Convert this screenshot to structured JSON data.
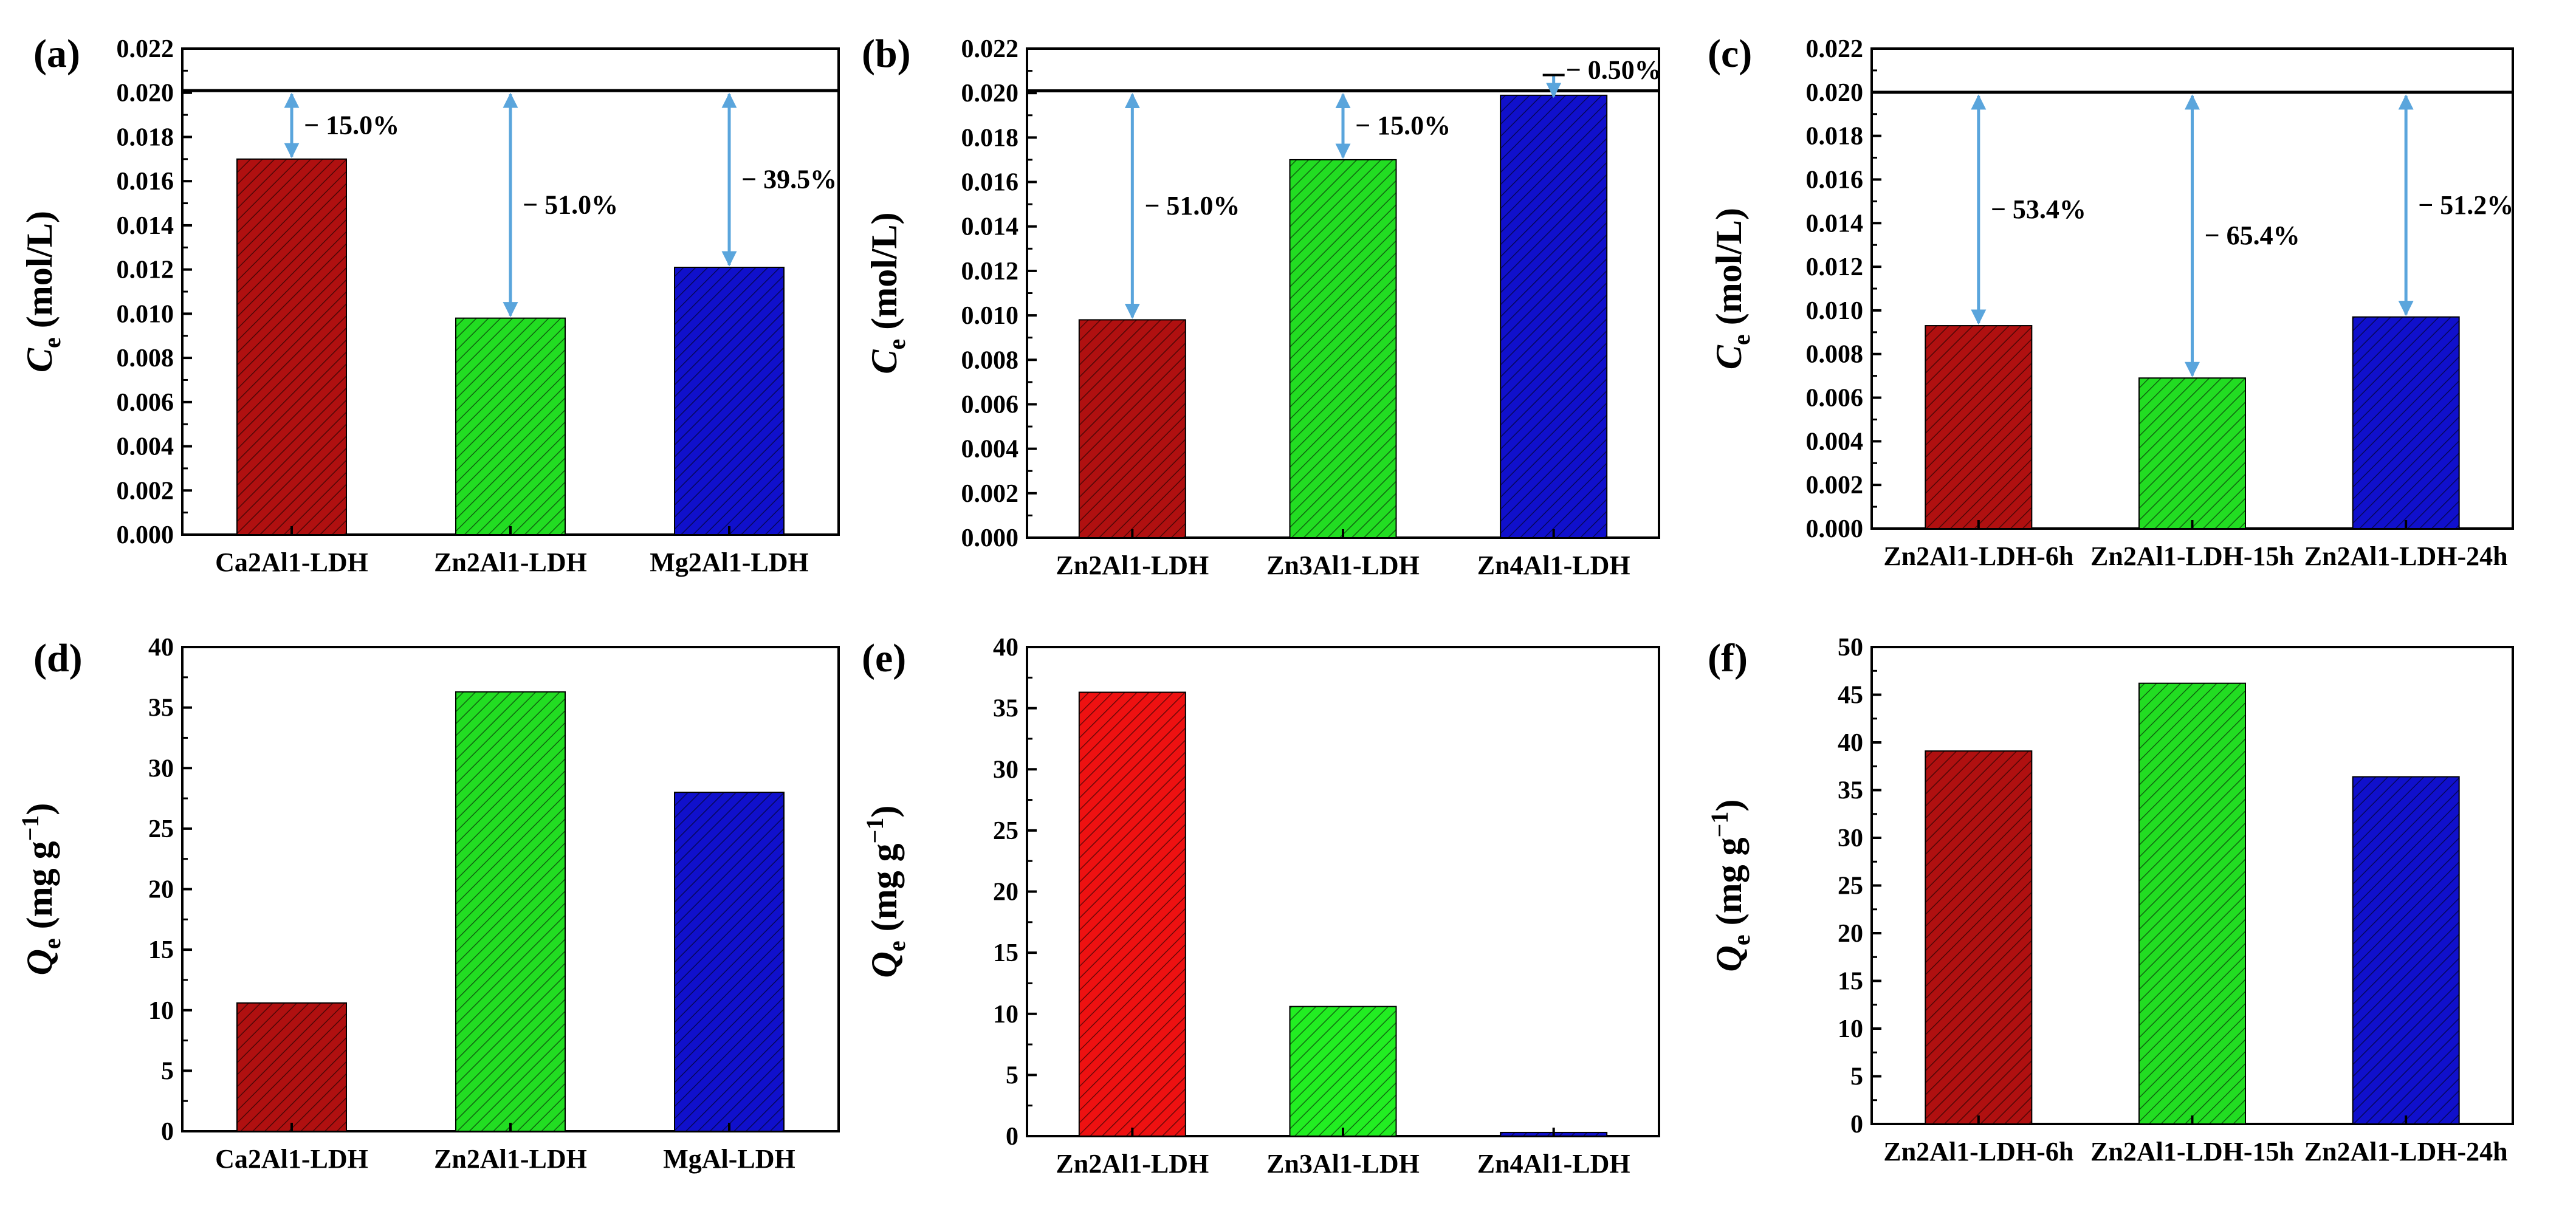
{
  "chart_data": [
    {
      "panel": "(a)",
      "type": "bar",
      "categories": [
        "Ca2Al1-LDH",
        "Zn2Al1-LDH",
        "Mg2Al1-LDH"
      ],
      "values": [
        0.017,
        0.0098,
        0.0121
      ],
      "colors": [
        "#b01010",
        "#22dd22",
        "#1010cc"
      ],
      "ylabel": {
        "italic": "C",
        "sub": "e",
        "rest": " (mol/L)"
      },
      "ylim": [
        0,
        0.022
      ],
      "yticks": [
        "0.000",
        "0.002",
        "0.004",
        "0.006",
        "0.008",
        "0.010",
        "0.012",
        "0.014",
        "0.016",
        "0.018",
        "0.020",
        "0.022"
      ],
      "reference_line": 0.0201,
      "annotations": [
        "− 15.0%",
        "− 51.0%",
        "− 39.5%"
      ]
    },
    {
      "panel": "(b)",
      "type": "bar",
      "categories": [
        "Zn2Al1-LDH",
        "Zn3Al1-LDH",
        "Zn4Al1-LDH"
      ],
      "values": [
        0.0098,
        0.017,
        0.0199
      ],
      "colors": [
        "#b01010",
        "#22dd22",
        "#1010cc"
      ],
      "ylabel": {
        "italic": "C",
        "sub": "e",
        "rest": " (mol/L)"
      },
      "ylim": [
        0,
        0.022
      ],
      "yticks": [
        "0.000",
        "0.002",
        "0.004",
        "0.006",
        "0.008",
        "0.010",
        "0.012",
        "0.014",
        "0.016",
        "0.018",
        "0.020",
        "0.022"
      ],
      "reference_line": 0.0201,
      "annotations": [
        "− 51.0%",
        "− 15.0%",
        "− 0.50%"
      ]
    },
    {
      "panel": "(c)",
      "type": "bar",
      "categories": [
        "Zn2Al1-LDH-6h",
        "Zn2Al1-LDH-15h",
        "Zn2Al1-LDH-24h"
      ],
      "values": [
        0.0093,
        0.0069,
        0.0097
      ],
      "colors": [
        "#b01010",
        "#22dd22",
        "#1010cc"
      ],
      "ylabel": {
        "italic": "C",
        "sub": "e",
        "rest": " (mol/L)"
      },
      "ylim": [
        0,
        0.022
      ],
      "yticks": [
        "0.000",
        "0.002",
        "0.004",
        "0.006",
        "0.008",
        "0.010",
        "0.012",
        "0.014",
        "0.016",
        "0.018",
        "0.020",
        "0.022"
      ],
      "reference_line": 0.02,
      "annotations": [
        "− 53.4%",
        "− 65.4%",
        "− 51.2%"
      ]
    },
    {
      "panel": "(d)",
      "type": "bar",
      "categories": [
        "Ca2Al1-LDH",
        "Zn2Al1-LDH",
        "MgAl-LDH"
      ],
      "values": [
        10.6,
        36.3,
        28.0
      ],
      "colors": [
        "#b01010",
        "#22dd22",
        "#1010cc"
      ],
      "ylabel": {
        "italic": "Q",
        "sub": "e",
        "rest": " (mg g",
        "sup": "−1",
        "close": ")"
      },
      "ylim": [
        0,
        40
      ],
      "yticks": [
        "0",
        "5",
        "10",
        "15",
        "20",
        "25",
        "30",
        "35",
        "40"
      ]
    },
    {
      "panel": "(e)",
      "type": "bar",
      "categories": [
        "Zn2Al1-LDH",
        "Zn3Al1-LDH",
        "Zn4Al1-LDH"
      ],
      "values": [
        36.3,
        10.6,
        0.3
      ],
      "colors": [
        "#ee1111",
        "#22ee22",
        "#1010cc"
      ],
      "ylabel": {
        "italic": "Q",
        "sub": "e",
        "rest": " (mg g",
        "sup": "−1",
        "close": ")"
      },
      "ylim": [
        0,
        40
      ],
      "yticks": [
        "0",
        "5",
        "10",
        "15",
        "20",
        "25",
        "30",
        "35",
        "40"
      ]
    },
    {
      "panel": "(f)",
      "type": "bar",
      "categories": [
        "Zn2Al1-LDH-6h",
        "Zn2Al1-LDH-15h",
        "Zn2Al1-LDH-24h"
      ],
      "values": [
        39.1,
        46.2,
        36.4
      ],
      "colors": [
        "#b01010",
        "#22dd22",
        "#1010cc"
      ],
      "ylabel": {
        "italic": "Q",
        "sub": "e",
        "rest": " (mg g",
        "sup": "−1",
        "close": ")"
      },
      "ylim": [
        0,
        50
      ],
      "yticks": [
        "0",
        "5",
        "10",
        "15",
        "20",
        "25",
        "30",
        "35",
        "40",
        "45",
        "50"
      ]
    }
  ],
  "colors": {
    "arrow": "#5aa5dc",
    "axis": "#000000",
    "hatch": "#000000"
  }
}
